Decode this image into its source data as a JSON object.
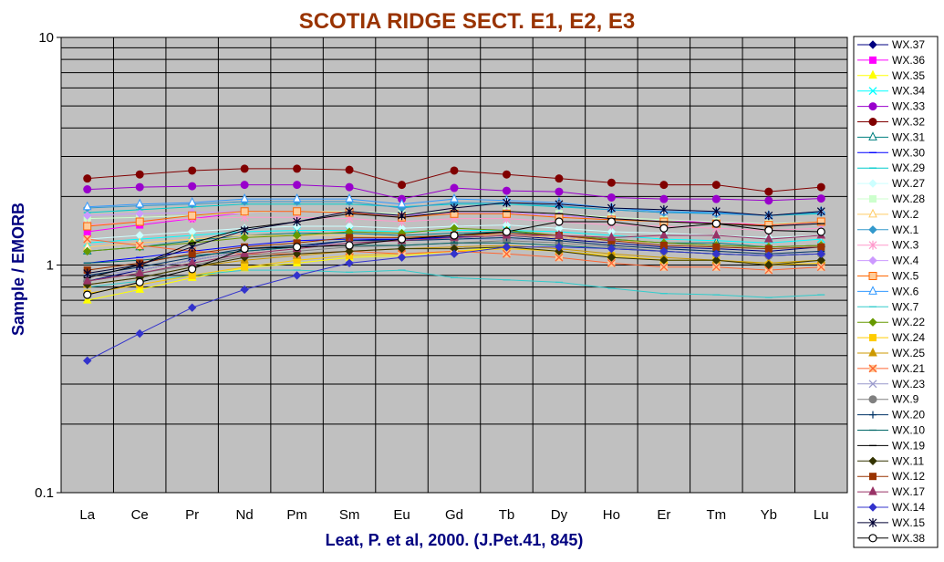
{
  "chart_data": {
    "type": "line",
    "title": "SCOTIA RIDGE SECT. E1, E2, E3",
    "xlabel": "Leat, P. et al, 2000. (J.Pet.41, 845)",
    "ylabel": "Sample / EMORB",
    "y_scale": "log",
    "ylim": [
      0.1,
      10
    ],
    "y_ticks": [
      "0.1",
      "1",
      "10"
    ],
    "grid": "on",
    "legend_position": "right",
    "colors": {
      "title": "#993300",
      "axis_title": "#000080",
      "plot_bg": "#c0c0c0"
    },
    "categories": [
      "La",
      "Ce",
      "Pr",
      "Nd",
      "Pm",
      "Sm",
      "Eu",
      "Gd",
      "Tb",
      "Dy",
      "Ho",
      "Er",
      "Tm",
      "Yb",
      "Lu"
    ],
    "series": [
      {
        "name": "WX.37",
        "color": "#000080",
        "marker": "diamond",
        "values": [
          0.85,
          0.95,
          1.05,
          1.15,
          1.2,
          1.28,
          1.3,
          1.33,
          1.35,
          1.3,
          1.25,
          1.2,
          1.18,
          1.15,
          1.2
        ]
      },
      {
        "name": "WX.36",
        "color": "#ff00ff",
        "marker": "square",
        "values": [
          1.4,
          1.5,
          1.6,
          1.7,
          1.72,
          1.7,
          1.65,
          1.7,
          1.7,
          1.65,
          1.6,
          1.55,
          1.55,
          1.5,
          1.55
        ]
      },
      {
        "name": "WX.35",
        "color": "#ffff00",
        "marker": "triangle",
        "values": [
          0.7,
          0.78,
          0.88,
          0.97,
          1.02,
          1.08,
          1.1,
          1.15,
          1.2,
          1.15,
          1.1,
          1.05,
          1.05,
          1.02,
          1.05
        ]
      },
      {
        "name": "WX.34",
        "color": "#00ffff",
        "marker": "x",
        "values": [
          1.25,
          1.3,
          1.35,
          1.4,
          1.42,
          1.42,
          1.4,
          1.42,
          1.42,
          1.4,
          1.35,
          1.3,
          1.28,
          1.25,
          1.3
        ]
      },
      {
        "name": "WX.33",
        "color": "#9900cc",
        "marker": "circle",
        "values": [
          2.15,
          2.2,
          2.22,
          2.25,
          2.25,
          2.2,
          1.95,
          2.18,
          2.12,
          2.1,
          1.98,
          1.95,
          1.95,
          1.92,
          1.96
        ]
      },
      {
        "name": "WX.32",
        "color": "#800000",
        "marker": "circle",
        "values": [
          2.4,
          2.5,
          2.6,
          2.65,
          2.65,
          2.62,
          2.25,
          2.6,
          2.5,
          2.4,
          2.3,
          2.25,
          2.25,
          2.1,
          2.2
        ]
      },
      {
        "name": "WX.31",
        "color": "#008080",
        "marker": "triangle-open",
        "values": [
          1.15,
          1.2,
          1.28,
          1.35,
          1.38,
          1.38,
          1.35,
          1.38,
          1.4,
          1.35,
          1.3,
          1.25,
          1.25,
          1.2,
          1.22
        ]
      },
      {
        "name": "WX.30",
        "color": "#0000ff",
        "marker": "dash",
        "values": [
          1.02,
          1.08,
          1.15,
          1.22,
          1.28,
          1.3,
          1.3,
          1.32,
          1.35,
          1.32,
          1.28,
          1.25,
          1.22,
          1.2,
          1.22
        ]
      },
      {
        "name": "WX.29",
        "color": "#00cccc",
        "marker": "dash",
        "values": [
          1.7,
          1.75,
          1.8,
          1.85,
          1.85,
          1.85,
          1.8,
          1.85,
          1.85,
          1.8,
          1.75,
          1.7,
          1.7,
          1.65,
          1.68
        ]
      },
      {
        "name": "WX.27",
        "color": "#ccffff",
        "marker": "diamond",
        "values": [
          1.3,
          1.35,
          1.4,
          1.45,
          1.48,
          1.48,
          1.45,
          1.48,
          1.5,
          1.45,
          1.4,
          1.38,
          1.35,
          1.32,
          1.35
        ]
      },
      {
        "name": "WX.28",
        "color": "#ccffcc",
        "marker": "square",
        "values": [
          1.6,
          1.62,
          1.65,
          1.7,
          1.72,
          1.72,
          1.68,
          1.72,
          1.72,
          1.68,
          1.62,
          1.58,
          1.55,
          1.52,
          1.55
        ]
      },
      {
        "name": "WX.2",
        "color": "#ffcc66",
        "marker": "triangle-open",
        "values": [
          1.2,
          1.25,
          1.3,
          1.35,
          1.35,
          1.35,
          1.32,
          1.35,
          1.35,
          1.32,
          1.28,
          1.25,
          1.22,
          1.2,
          1.22
        ]
      },
      {
        "name": "WX.1",
        "color": "#3399cc",
        "marker": "diamond",
        "values": [
          1.78,
          1.82,
          1.85,
          1.9,
          1.9,
          1.9,
          1.78,
          1.88,
          1.88,
          1.82,
          1.75,
          1.7,
          1.68,
          1.65,
          1.7
        ]
      },
      {
        "name": "WX.3",
        "color": "#ff99cc",
        "marker": "asterisk",
        "values": [
          1.5,
          1.55,
          1.6,
          1.62,
          1.62,
          1.6,
          1.55,
          1.6,
          1.6,
          1.55,
          1.5,
          1.48,
          1.45,
          1.42,
          1.45
        ]
      },
      {
        "name": "WX.4",
        "color": "#cc99ff",
        "marker": "diamond",
        "values": [
          1.65,
          1.68,
          1.7,
          1.72,
          1.72,
          1.7,
          1.65,
          1.7,
          1.7,
          1.65,
          1.6,
          1.55,
          1.52,
          1.5,
          1.52
        ]
      },
      {
        "name": "WX.5",
        "color": "#ff6600",
        "marker": "square-open",
        "values": [
          1.48,
          1.55,
          1.65,
          1.72,
          1.72,
          1.7,
          1.62,
          1.68,
          1.68,
          1.62,
          1.58,
          1.55,
          1.52,
          1.5,
          1.55
        ]
      },
      {
        "name": "WX.6",
        "color": "#3399ff",
        "marker": "triangle-open",
        "values": [
          1.8,
          1.85,
          1.88,
          1.95,
          1.95,
          1.95,
          1.85,
          1.95,
          1.92,
          1.88,
          1.78,
          1.72,
          1.7,
          1.65,
          1.72
        ]
      },
      {
        "name": "WX.7",
        "color": "#33cccc",
        "marker": "dash",
        "values": [
          0.8,
          0.85,
          0.9,
          0.95,
          0.95,
          0.93,
          0.95,
          0.88,
          0.86,
          0.84,
          0.79,
          0.75,
          0.74,
          0.72,
          0.74
        ]
      },
      {
        "name": "WX.22",
        "color": "#669900",
        "marker": "diamond",
        "values": [
          1.15,
          1.2,
          1.25,
          1.32,
          1.35,
          1.4,
          1.38,
          1.45,
          1.42,
          1.35,
          1.3,
          1.25,
          1.22,
          1.2,
          1.22
        ]
      },
      {
        "name": "WX.24",
        "color": "#ffcc00",
        "marker": "square",
        "values": [
          0.75,
          0.82,
          0.9,
          0.98,
          1.05,
          1.1,
          1.12,
          1.15,
          1.18,
          1.15,
          1.1,
          1.05,
          1.05,
          1.0,
          1.02
        ]
      },
      {
        "name": "WX.25",
        "color": "#cc9900",
        "marker": "triangle",
        "values": [
          0.82,
          0.88,
          0.98,
          1.05,
          1.1,
          1.15,
          1.18,
          1.2,
          1.22,
          1.18,
          1.12,
          1.08,
          1.05,
          1.02,
          1.05
        ]
      },
      {
        "name": "WX.21",
        "color": "#ff6633",
        "marker": "x-open",
        "values": [
          1.3,
          1.22,
          1.15,
          1.12,
          1.12,
          1.15,
          1.12,
          1.15,
          1.12,
          1.08,
          1.02,
          0.98,
          0.98,
          0.95,
          0.98
        ]
      },
      {
        "name": "WX.23",
        "color": "#9999cc",
        "marker": "x",
        "values": [
          0.9,
          0.95,
          1.05,
          1.15,
          1.2,
          1.25,
          1.28,
          1.3,
          1.3,
          1.28,
          1.22,
          1.18,
          1.15,
          1.12,
          1.15
        ]
      },
      {
        "name": "WX.9",
        "color": "#808080",
        "marker": "circle",
        "values": [
          0.85,
          0.92,
          1.0,
          1.1,
          1.15,
          1.2,
          1.22,
          1.25,
          1.28,
          1.25,
          1.2,
          1.15,
          1.12,
          1.1,
          1.12
        ]
      },
      {
        "name": "WX.20",
        "color": "#003366",
        "marker": "plus",
        "values": [
          0.9,
          0.98,
          1.08,
          1.18,
          1.22,
          1.28,
          1.28,
          1.3,
          1.32,
          1.28,
          1.22,
          1.18,
          1.15,
          1.12,
          1.15
        ]
      },
      {
        "name": "WX.10",
        "color": "#006666",
        "marker": "dash",
        "values": [
          1.02,
          1.05,
          1.1,
          1.15,
          1.2,
          1.22,
          1.22,
          1.25,
          1.25,
          1.22,
          1.18,
          1.15,
          1.12,
          1.1,
          1.12
        ]
      },
      {
        "name": "WX.19",
        "color": "#000000",
        "marker": "dash",
        "values": [
          0.88,
          1.0,
          1.25,
          1.45,
          1.55,
          1.68,
          1.62,
          1.72,
          1.72,
          1.68,
          1.6,
          1.55,
          1.52,
          1.48,
          1.52
        ]
      },
      {
        "name": "WX.11",
        "color": "#333300",
        "marker": "diamond",
        "values": [
          0.82,
          0.88,
          0.98,
          1.08,
          1.12,
          1.15,
          1.18,
          1.18,
          1.2,
          1.15,
          1.08,
          1.05,
          1.05,
          1.0,
          1.05
        ]
      },
      {
        "name": "WX.12",
        "color": "#993300",
        "marker": "square",
        "values": [
          0.95,
          1.02,
          1.12,
          1.2,
          1.25,
          1.32,
          1.32,
          1.35,
          1.38,
          1.35,
          1.28,
          1.22,
          1.2,
          1.18,
          1.2
        ]
      },
      {
        "name": "WX.17",
        "color": "#993366",
        "marker": "triangle",
        "values": [
          0.85,
          0.92,
          1.02,
          1.12,
          1.18,
          1.25,
          1.28,
          1.32,
          1.35,
          1.35,
          1.32,
          1.35,
          1.35,
          1.3,
          1.35
        ]
      },
      {
        "name": "WX.14",
        "color": "#3333cc",
        "marker": "diamond",
        "values": [
          0.38,
          0.5,
          0.65,
          0.78,
          0.9,
          1.02,
          1.08,
          1.12,
          1.2,
          1.2,
          1.18,
          1.15,
          1.12,
          1.1,
          1.12
        ]
      },
      {
        "name": "WX.15",
        "color": "#000033",
        "marker": "asterisk",
        "values": [
          0.92,
          1.0,
          1.2,
          1.42,
          1.55,
          1.72,
          1.65,
          1.78,
          1.88,
          1.85,
          1.78,
          1.75,
          1.72,
          1.65,
          1.72
        ]
      },
      {
        "name": "WX.38",
        "color": "#000000",
        "marker": "circle-open",
        "values": [
          0.74,
          0.84,
          0.96,
          1.18,
          1.2,
          1.22,
          1.3,
          1.35,
          1.4,
          1.55,
          1.55,
          1.45,
          1.52,
          1.42,
          1.4
        ]
      }
    ]
  }
}
